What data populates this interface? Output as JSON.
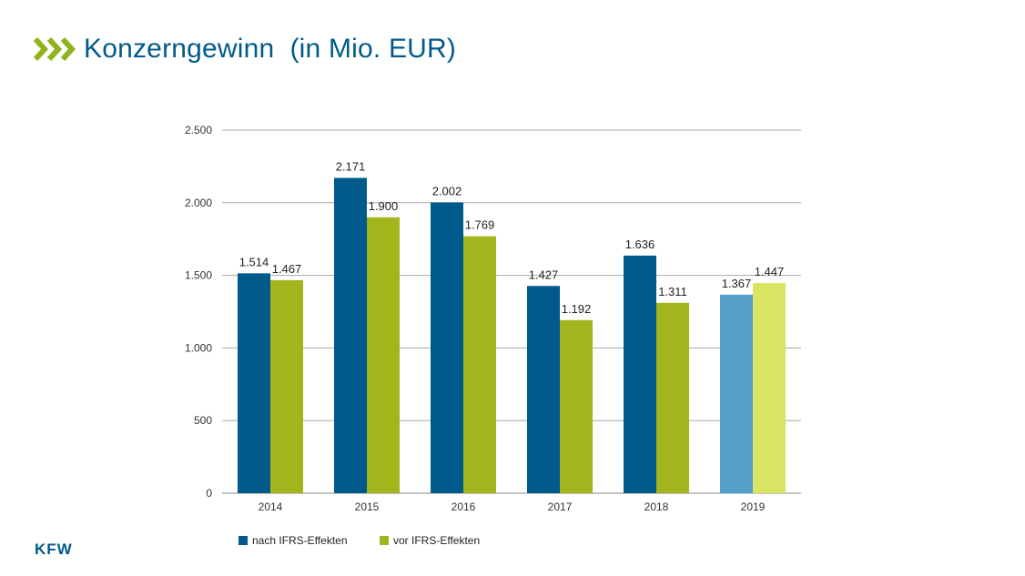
{
  "header": {
    "title": "Konzerngewinn  (in Mio. EUR)"
  },
  "brand": {
    "logo_text": "KFW",
    "logo_color": "#005a8c",
    "chevron_color": "#8fb31c"
  },
  "chart_data": {
    "type": "bar",
    "categories": [
      "2014",
      "2015",
      "2016",
      "2017",
      "2018",
      "2019"
    ],
    "series": [
      {
        "name": "nach IFRS-Effekten",
        "values": [
          1514,
          2171,
          2002,
          1427,
          1636,
          1367
        ],
        "labels": [
          "1.514",
          "2.171",
          "2.002",
          "1.427",
          "1.636",
          "1.367"
        ],
        "color": "#005a8c",
        "highlight_color": "#55a0c9"
      },
      {
        "name": "vor IFRS-Effekten",
        "values": [
          1467,
          1900,
          1769,
          1192,
          1311,
          1447
        ],
        "labels": [
          "1.467",
          "1.900",
          "1.769",
          "1.192",
          "1.311",
          "1.447"
        ],
        "color": "#a3b51c",
        "highlight_color": "#d9e463"
      }
    ],
    "highlight_category": "2019",
    "ylim": [
      0,
      2500
    ],
    "yticks": [
      0,
      500,
      1000,
      1500,
      2000,
      2500
    ],
    "ytick_labels": [
      "0",
      "500",
      "1.000",
      "1.500",
      "2.000",
      "2.500"
    ],
    "grid": true,
    "legend_position": "bottom-left",
    "title": "Konzerngewinn  (in Mio. EUR)",
    "xlabel": "",
    "ylabel": ""
  }
}
